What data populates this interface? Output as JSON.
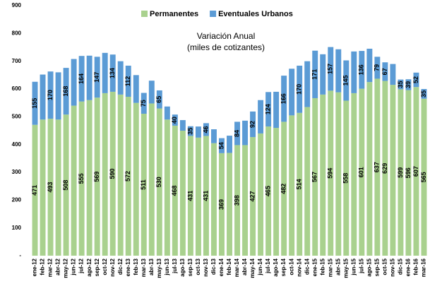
{
  "chart_data": {
    "type": "stacked_bar",
    "annotation": [
      "Variación Anual",
      "(miles de cotizantes)"
    ],
    "categories": [
      "ene-12",
      "feb-12",
      "mar-12",
      "abr-12",
      "may-12",
      "jun-12",
      "jul-12",
      "ago-12",
      "sep-12",
      "oct-12",
      "nov-12",
      "dic-12",
      "ene-13",
      "feb-13",
      "mar-13",
      "abr-13",
      "may-13",
      "jun-13",
      "jul-13",
      "ago-13",
      "sep-13",
      "oct-13",
      "nov-13",
      "dic-13",
      "ene-14",
      "feb-14",
      "mar-14",
      "abr-14",
      "may-14",
      "jun-14",
      "jul-14",
      "ago-14",
      "sep-14",
      "oct-14",
      "nov-14",
      "dic-14",
      "ene-15",
      "feb-15",
      "mar-15",
      "abr-15",
      "may-15",
      "jun-15",
      "jul-15",
      "ago-15",
      "sep-15",
      "oct-15",
      "nov-15",
      "dic-15",
      "ene-16",
      "feb-16",
      "mar-16"
    ],
    "series": [
      {
        "name": "Permanentes",
        "color": "#a9d18e",
        "values": [
          471,
          490,
          493,
          490,
          508,
          540,
          555,
          560,
          569,
          585,
          590,
          580,
          572,
          550,
          511,
          548,
          530,
          490,
          468,
          450,
          431,
          425,
          431,
          405,
          369,
          370,
          398,
          398,
          427,
          440,
          465,
          460,
          482,
          505,
          514,
          535,
          567,
          580,
          594,
          588,
          558,
          585,
          601,
          625,
          637,
          629,
          615,
          599,
          596,
          607,
          565
        ],
        "value_labels": [
          "471",
          null,
          "493",
          null,
          "508",
          null,
          "555",
          null,
          "569",
          null,
          "590",
          null,
          "572",
          null,
          "511",
          null,
          "530",
          null,
          "468",
          null,
          "431",
          null,
          "431",
          null,
          "369",
          null,
          "398",
          null,
          "427",
          null,
          "465",
          null,
          "482",
          null,
          "514",
          null,
          "567",
          null,
          "594",
          null,
          "558",
          null,
          "601",
          null,
          "637",
          "629",
          null,
          "599",
          "596",
          "607",
          "565"
        ]
      },
      {
        "name": "Eventuales Urbanos",
        "color": "#5b9bd5",
        "values": [
          155,
          162,
          170,
          170,
          168,
          168,
          164,
          160,
          147,
          145,
          134,
          120,
          112,
          100,
          75,
          82,
          65,
          47,
          40,
          38,
          35,
          40,
          46,
          50,
          54,
          62,
          84,
          88,
          92,
          120,
          124,
          130,
          166,
          168,
          170,
          165,
          171,
          145,
          157,
          155,
          145,
          150,
          136,
          120,
          79,
          67,
          75,
          35,
          39,
          52,
          35
        ],
        "value_labels": [
          "155",
          null,
          "170",
          null,
          "168",
          null,
          "164",
          null,
          "147",
          null,
          "134",
          null,
          "112",
          null,
          "75",
          null,
          "65",
          null,
          "40",
          null,
          "35",
          null,
          "46",
          null,
          "54",
          null,
          "84",
          null,
          "92",
          null,
          "124",
          null,
          "166",
          null,
          "170",
          null,
          "171",
          null,
          "157",
          null,
          "145",
          null,
          "136",
          null,
          "79",
          "67",
          null,
          "35",
          "39",
          "52",
          "35"
        ]
      }
    ],
    "ylim": [
      0,
      900
    ],
    "yticks": [
      {
        "value": 0,
        "label": "-"
      },
      100,
      200,
      300,
      400,
      500,
      600,
      700,
      800,
      900
    ],
    "legend": "top"
  }
}
